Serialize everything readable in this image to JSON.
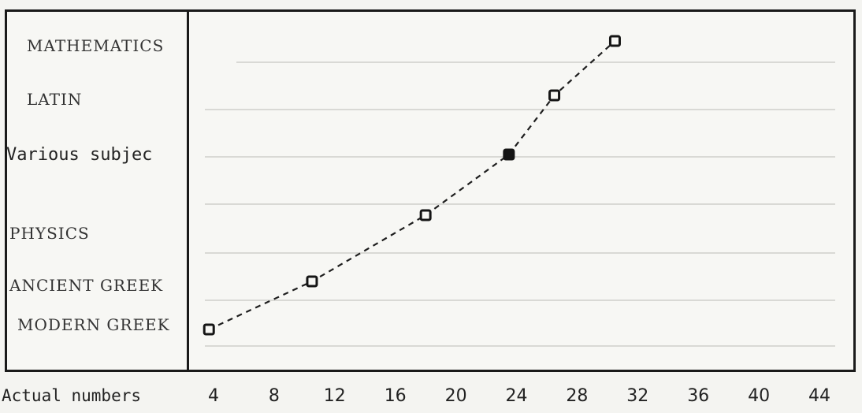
{
  "chart_data": {
    "type": "line",
    "categories": [
      "MATHEMATICS",
      "LATIN",
      "Various subjec",
      "PHYSICS",
      "ANCIENT GREEK",
      "MODERN GREEK"
    ],
    "x_label": "Actual numbers",
    "x_ticks": [
      4,
      8,
      12,
      16,
      20,
      24,
      28,
      32,
      36,
      40,
      44
    ],
    "series": [
      {
        "points": [
          {
            "category": "MODERN GREEK",
            "x": 3.7,
            "marker": "open"
          },
          {
            "category": "ANCIENT GREEK",
            "x": 10.5,
            "marker": "open"
          },
          {
            "category": "PHYSICS",
            "x": 18,
            "marker": "open"
          },
          {
            "category": "Various subjec",
            "x": 23.5,
            "marker": "filled"
          },
          {
            "category": "LATIN",
            "x": 26.5,
            "marker": "open"
          },
          {
            "category": "MATHEMATICS",
            "x": 30.5,
            "marker": "open"
          }
        ]
      }
    ],
    "line_style": "dashed",
    "grid": false
  }
}
